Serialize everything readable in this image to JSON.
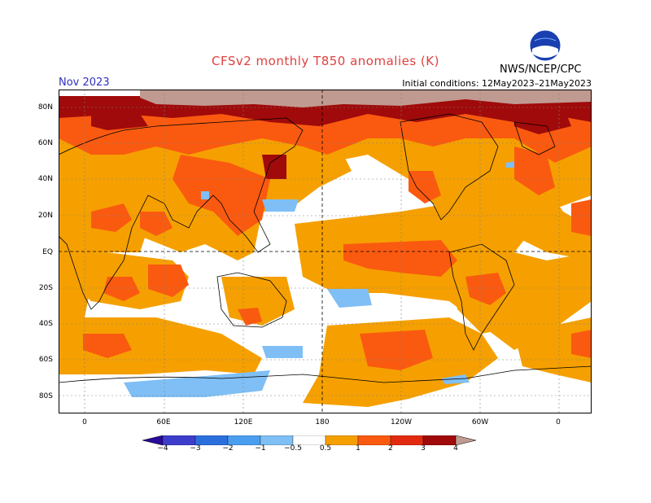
{
  "header": {
    "title": "CFSv2 monthly T850 anomalies (K)",
    "agency": "NWS/NCEP/CPC",
    "month": "Nov 2023",
    "initial_conditions": "Initial conditions: 12May2023–21May2023",
    "logo_text": "NOAA"
  },
  "map": {
    "lat_labels": [
      "80N",
      "60N",
      "40N",
      "20N",
      "EQ",
      "20S",
      "40S",
      "60S",
      "80S"
    ],
    "lon_labels": [
      "0",
      "60E",
      "120E",
      "180",
      "120W",
      "60W",
      "0"
    ]
  },
  "colorbar": {
    "ticks": [
      "−4",
      "−3",
      "−2",
      "−1",
      "−0.5",
      "0.5",
      "1",
      "2",
      "3",
      "4"
    ],
    "colors": {
      "below_-4": "#2a0a9a",
      "-4_-3": "#3d3dcc",
      "-3_-2": "#2b6fdc",
      "-2_-1": "#4a9ef0",
      "-1_-0.5": "#7fbff5",
      "-0.5_0.5": "#ffffff",
      "0.5_1": "#f5a000",
      "1_2": "#fa5a10",
      "2_3": "#e22a10",
      "3_4": "#a00a0a",
      "above_4": "#c09a90"
    }
  }
}
